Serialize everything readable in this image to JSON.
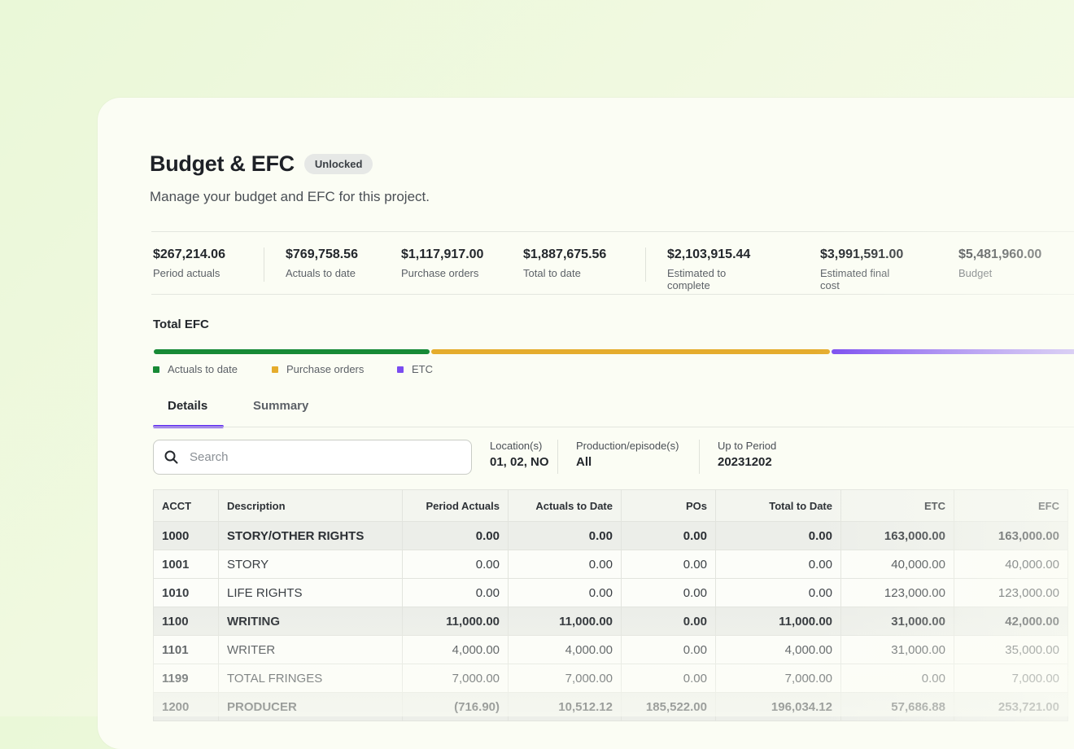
{
  "page": {
    "title": "Budget & EFC",
    "badge": "Unlocked",
    "subtitle": "Manage your budget and EFC for this project."
  },
  "stats": [
    {
      "value": "$267,214.06",
      "label": "Period actuals"
    },
    {
      "value": "$769,758.56",
      "label": "Actuals to date"
    },
    {
      "value": "$1,117,917.00",
      "label": "Purchase orders"
    },
    {
      "value": "$1,887,675.56",
      "label": "Total to date"
    },
    {
      "value": "$2,103,915.44",
      "label": "Estimated to complete"
    },
    {
      "value": "$3,991,591.00",
      "label": "Estimated final cost"
    },
    {
      "value": "$5,481,960.00",
      "label": "Budget"
    }
  ],
  "efc": {
    "label": "Total EFC",
    "colors": {
      "actuals": "#178a36",
      "purchase_orders": "#e5ac2c",
      "etc": "#7a4cf0"
    },
    "legend": [
      "Actuals to date",
      "Purchase orders",
      "ETC"
    ]
  },
  "tabs": [
    {
      "label": "Details",
      "active": true
    },
    {
      "label": "Summary",
      "active": false
    }
  ],
  "search": {
    "placeholder": "Search",
    "icon": "search-icon"
  },
  "filters": [
    {
      "label": "Location(s)",
      "value": "01, 02, NO"
    },
    {
      "label": "Production/episode(s)",
      "value": "All"
    },
    {
      "label": "Up to Period",
      "value": "20231202"
    }
  ],
  "table": {
    "columns": [
      "ACCT",
      "Description",
      "Period Actuals",
      "Actuals to Date",
      "POs",
      "Total to Date",
      "ETC",
      "EFC"
    ],
    "rows": [
      {
        "type": "group",
        "cells": [
          "1000",
          "STORY/OTHER RIGHTS",
          "0.00",
          "0.00",
          "0.00",
          "0.00",
          "163,000.00",
          "163,000.00"
        ]
      },
      {
        "type": "row",
        "cells": [
          "1001",
          "STORY",
          "0.00",
          "0.00",
          "0.00",
          "0.00",
          "40,000.00",
          "40,000.00"
        ]
      },
      {
        "type": "row",
        "cells": [
          "1010",
          "LIFE RIGHTS",
          "0.00",
          "0.00",
          "0.00",
          "0.00",
          "123,000.00",
          "123,000.00"
        ]
      },
      {
        "type": "group",
        "cells": [
          "1100",
          "WRITING",
          "11,000.00",
          "11,000.00",
          "0.00",
          "11,000.00",
          "31,000.00",
          "42,000.00"
        ]
      },
      {
        "type": "row",
        "cells": [
          "1101",
          "WRITER",
          "4,000.00",
          "4,000.00",
          "0.00",
          "4,000.00",
          "31,000.00",
          "35,000.00"
        ]
      },
      {
        "type": "row",
        "cells": [
          "1199",
          "TOTAL FRINGES",
          "7,000.00",
          "7,000.00",
          "0.00",
          "7,000.00",
          "0.00",
          "7,000.00"
        ]
      },
      {
        "type": "group",
        "cells": [
          "1200",
          "PRODUCER",
          "(716.90)",
          "10,512.12",
          "185,522.00",
          "196,034.12",
          "57,686.88",
          "253,721.00"
        ]
      }
    ]
  }
}
